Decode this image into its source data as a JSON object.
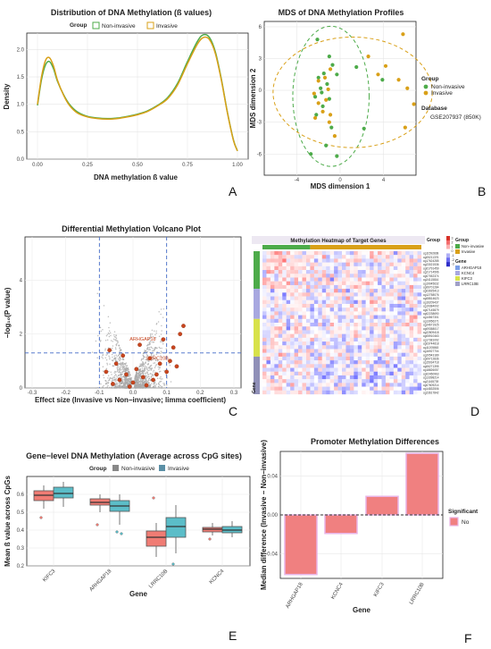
{
  "colors": {
    "green": "#4dab4a",
    "orange": "#d9a018",
    "grey": "#aaaaaa",
    "red": "#c8451e",
    "blue": "#4169c8",
    "pink": "#f07c74",
    "teal": "#5bbdc8",
    "sig_fill": "#f08080",
    "sig_border": "#e8b3e6"
  },
  "panels": [
    {
      "label": "A",
      "chart_data": {
        "type": "line",
        "title": "Distribution of DNA Methylation (ß values)",
        "xlabel": "DNA methylation ß value",
        "ylabel": "Density",
        "xlim": [
          0,
          1
        ],
        "ylim": [
          0,
          2.3
        ],
        "xticks": [
          "0.00",
          "0.25",
          "0.50",
          "0.75",
          "1.00"
        ],
        "yticks": [
          "0.0",
          "0.5",
          "1.0",
          "1.5",
          "2.0"
        ],
        "legend_title": "Group",
        "legend_position": "top",
        "series": [
          {
            "name": "Non-invasive",
            "color": "#4dab4a",
            "x": [
              0.0,
              0.02,
              0.04,
              0.06,
              0.08,
              0.1,
              0.13,
              0.16,
              0.2,
              0.25,
              0.3,
              0.35,
              0.4,
              0.45,
              0.5,
              0.55,
              0.6,
              0.65,
              0.7,
              0.75,
              0.8,
              0.83,
              0.86,
              0.89,
              0.92,
              0.95,
              0.98,
              1.0
            ],
            "y": [
              0.98,
              1.45,
              1.72,
              1.78,
              1.65,
              1.42,
              1.18,
              1.0,
              0.86,
              0.78,
              0.75,
              0.74,
              0.75,
              0.78,
              0.82,
              0.88,
              0.98,
              1.12,
              1.38,
              1.78,
              2.15,
              2.27,
              2.22,
              1.95,
              1.45,
              0.85,
              0.35,
              0.15
            ]
          },
          {
            "name": "Invasive",
            "color": "#d9a018",
            "x": [
              0.0,
              0.02,
              0.04,
              0.06,
              0.08,
              0.1,
              0.13,
              0.16,
              0.2,
              0.25,
              0.3,
              0.35,
              0.4,
              0.45,
              0.5,
              0.55,
              0.6,
              0.65,
              0.7,
              0.75,
              0.8,
              0.83,
              0.86,
              0.89,
              0.92,
              0.95,
              0.98,
              1.0
            ],
            "y": [
              1.0,
              1.5,
              1.8,
              1.85,
              1.7,
              1.44,
              1.17,
              0.98,
              0.84,
              0.77,
              0.74,
              0.73,
              0.74,
              0.77,
              0.81,
              0.87,
              0.97,
              1.1,
              1.35,
              1.74,
              2.1,
              2.22,
              2.18,
              1.92,
              1.43,
              0.84,
              0.34,
              0.15
            ]
          }
        ]
      }
    },
    {
      "label": "B",
      "chart_data": {
        "type": "scatter",
        "title": "MDS of DNA Methylation Profiles",
        "xlabel": "MDS dimension 1",
        "ylabel": "MDS dimension 2",
        "xlim": [
          -7,
          7
        ],
        "ylim": [
          -8,
          6.5
        ],
        "xticks": [
          "-4",
          "0",
          "4"
        ],
        "yticks": [
          "-6",
          "-3",
          "0",
          "3",
          "6"
        ],
        "legend_title": "Group",
        "legend_position": "right",
        "database_title": "Database",
        "database_value": "GSE207937 (850K)",
        "series": [
          {
            "name": "Non-invasive",
            "color": "#4dab4a",
            "points": [
              [
                -2.1,
                4.8
              ],
              [
                -1.0,
                3.2
              ],
              [
                1.5,
                2.2
              ],
              [
                -0.7,
                2.4
              ],
              [
                -1.5,
                1.6
              ],
              [
                -2.0,
                1.2
              ],
              [
                -1.2,
                0.6
              ],
              [
                -1.8,
                0.2
              ],
              [
                -2.3,
                -0.6
              ],
              [
                -1.0,
                -0.8
              ],
              [
                -1.6,
                -1.5
              ],
              [
                -2.2,
                -2.3
              ],
              [
                -0.8,
                -3.5
              ],
              [
                2.2,
                -3.6
              ],
              [
                -1.3,
                -5.2
              ],
              [
                -2.7,
                -6.0
              ],
              [
                -0.3,
                -6.2
              ],
              [
                3.9,
                1.0
              ],
              [
                -1.7,
                -0.2
              ],
              [
                -0.3,
                1.5
              ]
            ]
          },
          {
            "name": "Invasive",
            "color": "#d9a018",
            "points": [
              [
                5.8,
                5.3
              ],
              [
                2.6,
                3.2
              ],
              [
                4.2,
                2.3
              ],
              [
                5.4,
                1.0
              ],
              [
                6.2,
                0.2
              ],
              [
                3.5,
                1.5
              ],
              [
                6.8,
                -1.3
              ],
              [
                6.0,
                -3.5
              ],
              [
                -0.9,
                2.0
              ],
              [
                -1.4,
                1.2
              ],
              [
                -2.0,
                0.9
              ],
              [
                -1.1,
                0.1
              ],
              [
                -2.4,
                -0.3
              ],
              [
                -1.3,
                -0.9
              ],
              [
                -2.0,
                -1.2
              ],
              [
                -1.6,
                -2.0
              ],
              [
                -0.9,
                -2.3
              ],
              [
                -2.3,
                -2.6
              ],
              [
                -1.0,
                -3.0
              ],
              [
                -0.5,
                -4.3
              ]
            ]
          }
        ]
      }
    },
    {
      "label": "C",
      "chart_data": {
        "type": "scatter",
        "title": "Differential Methylation Volcano Plot",
        "xlabel": "Effect size (Invasive vs Non−invasive; limma coefficient)",
        "ylabel": "−log₁₀(P value)",
        "xlim": [
          -0.3,
          0.3
        ],
        "ylim": [
          0,
          5.6
        ],
        "xticks": [
          "-0.3",
          "-0.2",
          "-0.1",
          "0.0",
          "0.1",
          "0.2",
          "0.3"
        ],
        "yticks": [
          "0",
          "2",
          "4"
        ],
        "thresholds": {
          "x": [
            -0.1,
            0.1
          ],
          "y": 1.3
        },
        "annotations": [
          "ARHGAP18",
          "LRRC10B"
        ],
        "highlighted": [
          [
            -0.08,
            0.6
          ],
          [
            -0.05,
            0.9
          ],
          [
            -0.04,
            0.3
          ],
          [
            -0.02,
            0.5
          ],
          [
            0.0,
            0.2
          ],
          [
            0.01,
            0.7
          ],
          [
            0.03,
            0.4
          ],
          [
            0.05,
            1.1
          ],
          [
            0.06,
            0.3
          ],
          [
            0.08,
            0.9
          ],
          [
            0.1,
            0.6
          ],
          [
            0.12,
            1.5
          ],
          [
            0.14,
            2.0
          ],
          [
            0.15,
            2.3
          ],
          [
            -0.06,
            0.15
          ],
          [
            0.02,
            1.6
          ],
          [
            -0.03,
            1.2
          ],
          [
            0.09,
            1.8
          ],
          [
            0.11,
            1.0
          ],
          [
            0.04,
            0.1
          ],
          [
            -0.01,
            0.05
          ],
          [
            0.07,
            0.5
          ],
          [
            0.13,
            0.8
          ],
          [
            -0.07,
            1.4
          ]
        ]
      }
    },
    {
      "label": "D",
      "chart_data": {
        "type": "heatmap",
        "title": "Methylation Heatmap of Target Genes",
        "legend_group_title": "Group",
        "legend_groups": [
          "Non−invasive",
          "Invasive"
        ],
        "legend_gene_title": "Gene",
        "legend_genes": [
          "ARHGAP18",
          "KCNC4",
          "KIFC3",
          "LRRC10B"
        ],
        "scale_labels": [
          "3",
          "2",
          "1",
          "0",
          "-1",
          "-2",
          "-3"
        ],
        "annotation_labels": [
          "Group",
          "Gene"
        ],
        "row_labels": [
          "cg11592838",
          "cg05211376",
          "cg17624285",
          "cg23021536",
          "cg01791459",
          "cg21714596",
          "cg07052374",
          "cg24115816",
          "cg19045632",
          "cg06701284",
          "cg03925413",
          "cg12758076",
          "cg08814623",
          "cg16209437",
          "cg19384002",
          "cg07145879",
          "cg02238690",
          "cg14567301",
          "cg13056271",
          "cg24671925",
          "cg09358017",
          "cg22809418",
          "cg05910463",
          "cg17381092",
          "cg03744618",
          "cg11205863",
          "cg16927704",
          "cg20543189",
          "cg09712836",
          "cg15034718",
          "cg06271395",
          "cg18826057",
          "cg02450963",
          "cg13398214",
          "cg21165739",
          "cg07609214",
          "cg14832506",
          "cg23617842"
        ],
        "n_rows": 38,
        "n_cols": 40,
        "n_noninvasive_cols": 12
      }
    },
    {
      "label": "E",
      "chart_data": {
        "type": "box",
        "title": "Gene−level DNA Methylation (Average across CpG sites)",
        "xlabel": "Gene",
        "ylabel": "Mean ß value across CpGs",
        "ylim": [
          0.2,
          0.7
        ],
        "yticks": [
          "0.2",
          "0.3",
          "0.4",
          "0.5",
          "0.6"
        ],
        "legend_title": "Group",
        "legend_position": "top",
        "categories": [
          "KIFC3",
          "ARHGAP18",
          "LRRC10B",
          "KCNC4"
        ],
        "series": [
          {
            "name": "Non-invasive",
            "color": "#f07c74",
            "boxes": [
              {
                "min": 0.52,
                "q1": 0.565,
                "median": 0.595,
                "q3": 0.62,
                "max": 0.65,
                "outliers": [
                  0.47
                ]
              },
              {
                "min": 0.5,
                "q1": 0.54,
                "median": 0.555,
                "q3": 0.575,
                "max": 0.6,
                "outliers": [
                  0.43
                ]
              },
              {
                "min": 0.25,
                "q1": 0.31,
                "median": 0.36,
                "q3": 0.395,
                "max": 0.44,
                "outliers": [
                  0.58
                ]
              },
              {
                "min": 0.37,
                "q1": 0.39,
                "median": 0.405,
                "q3": 0.415,
                "max": 0.44,
                "outliers": [
                  0.35
                ]
              }
            ]
          },
          {
            "name": "Invasive",
            "color": "#5bbdc8",
            "boxes": [
              {
                "min": 0.53,
                "q1": 0.58,
                "median": 0.605,
                "q3": 0.64,
                "max": 0.67,
                "outliers": []
              },
              {
                "min": 0.43,
                "q1": 0.505,
                "median": 0.535,
                "q3": 0.565,
                "max": 0.6,
                "outliers": [
                  0.39,
                  0.38
                ]
              },
              {
                "min": 0.27,
                "q1": 0.36,
                "median": 0.42,
                "q3": 0.47,
                "max": 0.54,
                "outliers": [
                  0.21
                ]
              },
              {
                "min": 0.36,
                "q1": 0.385,
                "median": 0.4,
                "q3": 0.42,
                "max": 0.45,
                "outliers": []
              }
            ]
          }
        ]
      }
    },
    {
      "label": "F",
      "chart_data": {
        "type": "bar",
        "title": "Promoter Methylation Differences",
        "xlabel": "Gene",
        "ylabel": "Median difference (Invasive − Non−invasive)",
        "ylim": [
          -0.065,
          0.065
        ],
        "yticks": [
          "-0.04",
          "0.00",
          "0.04"
        ],
        "yticks_values": [
          -0.04,
          0.0,
          0.04
        ],
        "categories": [
          "ARHGAP18",
          "KCNC4",
          "KIFC3",
          "LRRC10B"
        ],
        "values": [
          -0.061,
          -0.019,
          0.019,
          0.063
        ],
        "legend_title": "Significant",
        "legend_entries": [
          "No"
        ],
        "legend_position": "right"
      }
    }
  ]
}
